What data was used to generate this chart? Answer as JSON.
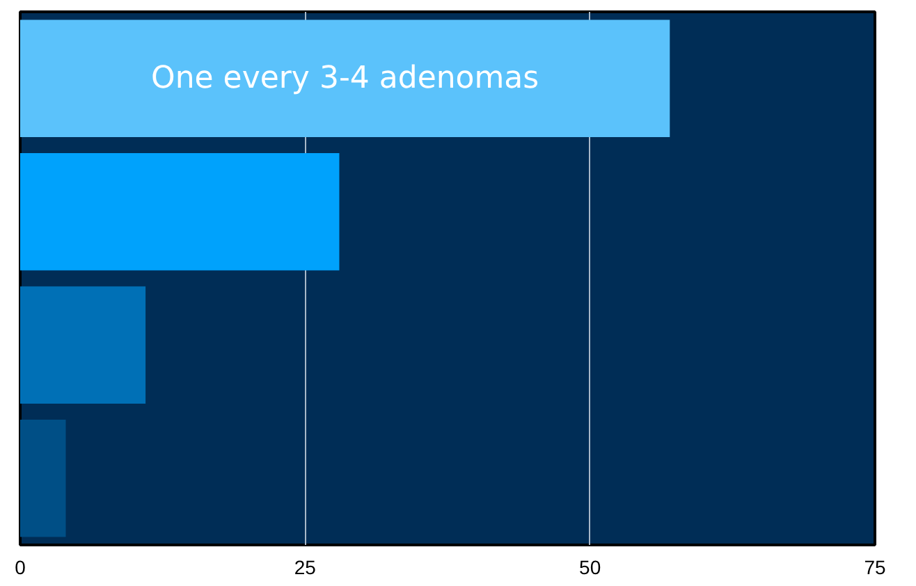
{
  "chart_data": {
    "type": "bar",
    "orientation": "horizontal",
    "categories": [
      null,
      null,
      null,
      null
    ],
    "values": [
      57,
      28,
      11,
      4
    ],
    "colors": [
      "#5bc2fb",
      "#00a2fc",
      "#0070b6",
      "#004f86"
    ],
    "xlim": [
      0,
      75
    ],
    "xticks": [
      0,
      25,
      50,
      75
    ],
    "grid": "x",
    "tick_labels": "x",
    "annotations": [
      "One every 3-4 adenomas"
    ]
  }
}
